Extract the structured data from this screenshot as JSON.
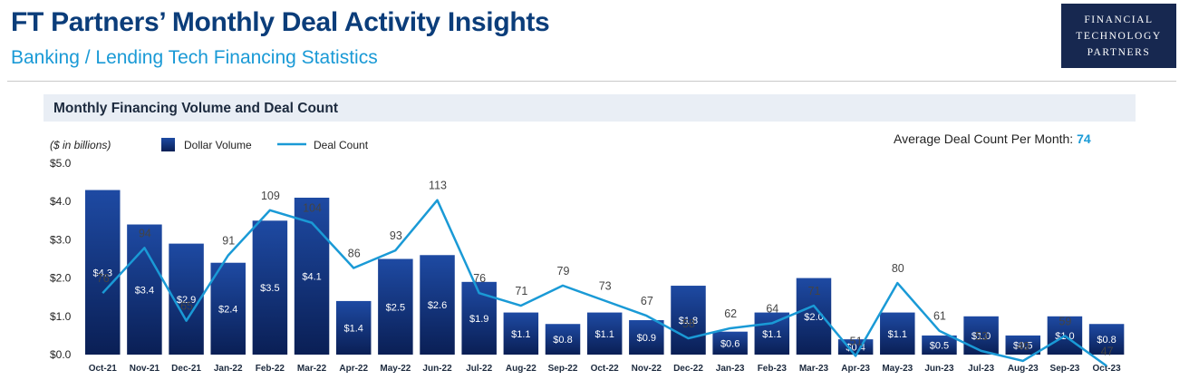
{
  "header": {
    "title": "FT Partners’ Monthly Deal Activity Insights",
    "subtitle": "Banking / Lending Tech Financing Statistics"
  },
  "logo": {
    "lines": [
      "FINANCIAL",
      "TECHNOLOGY",
      "PARTNERS"
    ],
    "background": "#172850"
  },
  "section": {
    "title": "Monthly Financing Volume and Deal Count"
  },
  "colors": {
    "bar_top": "#1e4aa3",
    "bar_bottom": "#0a1f55",
    "line": "#1a9ad6",
    "accent": "#1a9ad6"
  },
  "chart_data": {
    "type": "bar",
    "unit_note": "($ in billions)",
    "legend": {
      "bar_label": "Dollar Volume",
      "line_label": "Deal Count",
      "placement": "top-left"
    },
    "average_note": {
      "label": "Average Deal Count Per Month: ",
      "value": "74"
    },
    "y_ticks": [
      "$0.0",
      "$1.0",
      "$2.0",
      "$3.0",
      "$4.0",
      "$5.0"
    ],
    "ylim": [
      0,
      5
    ],
    "categories": [
      "Oct-21",
      "Nov-21",
      "Dec-21",
      "Jan-22",
      "Feb-22",
      "Mar-22",
      "Apr-22",
      "May-22",
      "Jun-22",
      "Jul-22",
      "Aug-22",
      "Sep-22",
      "Oct-22",
      "Nov-22",
      "Dec-22",
      "Jan-23",
      "Feb-23",
      "Mar-23",
      "Apr-23",
      "May-23",
      "Jun-23",
      "Jul-23",
      "Aug-23",
      "Sep-23",
      "Oct-23"
    ],
    "series": [
      {
        "name": "Dollar Volume",
        "type": "bar",
        "values": [
          4.3,
          3.4,
          2.9,
          2.4,
          3.5,
          4.1,
          1.4,
          2.5,
          2.6,
          1.9,
          1.1,
          0.8,
          1.1,
          0.9,
          1.8,
          0.6,
          1.1,
          2.0,
          0.4,
          1.1,
          0.5,
          1.0,
          0.5,
          1.0,
          0.8
        ],
        "labels": [
          "$4.3",
          "$3.4",
          "$2.9",
          "$2.4",
          "$3.5",
          "$4.1",
          "$1.4",
          "$2.5",
          "$2.6",
          "$1.9",
          "$1.1",
          "$0.8",
          "$1.1",
          "$0.9",
          "$1.8",
          "$0.6",
          "$1.1",
          "$2.0",
          "$0.4",
          "$1.1",
          "$0.5",
          "$1.0",
          "$0.5",
          "$1.0",
          "$0.8"
        ]
      },
      {
        "name": "Deal Count",
        "type": "line",
        "values": [
          76,
          94,
          65,
          91,
          109,
          104,
          86,
          93,
          113,
          76,
          71,
          79,
          73,
          67,
          58,
          62,
          64,
          71,
          51,
          80,
          61,
          53,
          49,
          59,
          47
        ]
      }
    ]
  }
}
